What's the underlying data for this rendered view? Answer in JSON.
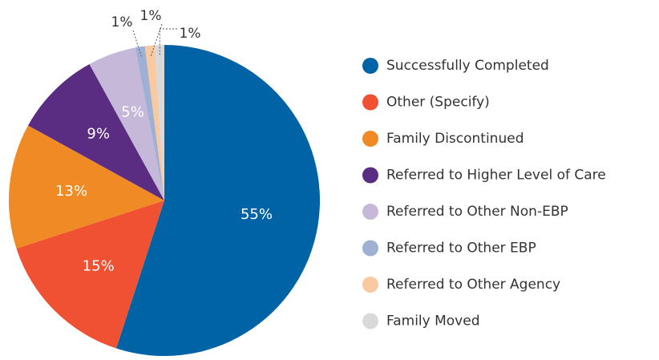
{
  "chart_data": {
    "type": "pie",
    "categories": [
      "Successfully Completed",
      "Other (Specify)",
      "Family Discontinued",
      "Referred to Higher Level of Care",
      "Referred to Other Non-EBP",
      "Referred to Other EBP",
      "Referred to Other Agency",
      "Family Moved"
    ],
    "values": [
      55,
      15,
      13,
      9,
      5,
      1,
      1,
      1
    ],
    "value_labels": [
      "55%",
      "15%",
      "13%",
      "9%",
      "5%",
      "1%",
      "1%",
      "1%"
    ],
    "colors": [
      "#0063a5",
      "#f05133",
      "#f08a24",
      "#5b2d82",
      "#c6b8d8",
      "#9fb0d5",
      "#f9c9a0",
      "#d9d9d9"
    ]
  }
}
